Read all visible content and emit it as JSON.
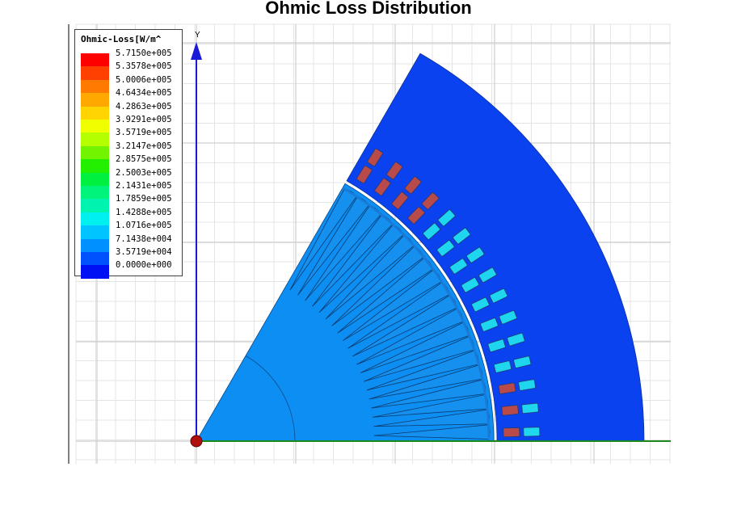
{
  "title": "Ohmic Loss Distribution",
  "axes": {
    "y_label": "Y"
  },
  "legend": {
    "title": "Ohmic-Loss[W/m^",
    "entries": [
      {
        "label": "5.7150e+005",
        "color": "#ff0000"
      },
      {
        "label": "5.3578e+005",
        "color": "#ff4000"
      },
      {
        "label": "5.0006e+005",
        "color": "#ff7a00"
      },
      {
        "label": "4.6434e+005",
        "color": "#ffa800"
      },
      {
        "label": "4.2863e+005",
        "color": "#ffd400"
      },
      {
        "label": "3.9291e+005",
        "color": "#f0ff00"
      },
      {
        "label": "3.5719e+005",
        "color": "#b4ff00"
      },
      {
        "label": "3.2147e+005",
        "color": "#72f400"
      },
      {
        "label": "2.8575e+005",
        "color": "#22f000"
      },
      {
        "label": "2.5003e+005",
        "color": "#00f040"
      },
      {
        "label": "2.1431e+005",
        "color": "#00f47c"
      },
      {
        "label": "1.7859e+005",
        "color": "#00f4b0"
      },
      {
        "label": "1.4288e+005",
        "color": "#00f0f0"
      },
      {
        "label": "1.0716e+005",
        "color": "#00c4ff"
      },
      {
        "label": "7.1438e+004",
        "color": "#0090ff"
      },
      {
        "label": "3.5719e+004",
        "color": "#0052ff"
      },
      {
        "label": "0.0000e+000",
        "color": "#0010f4"
      }
    ]
  },
  "regions": {
    "stator_color": "#0a42f0",
    "rotor_color": "#0d8ef2",
    "bar_low_color": "#1ed6ee",
    "bar_high_color": "#b84a4a"
  }
}
